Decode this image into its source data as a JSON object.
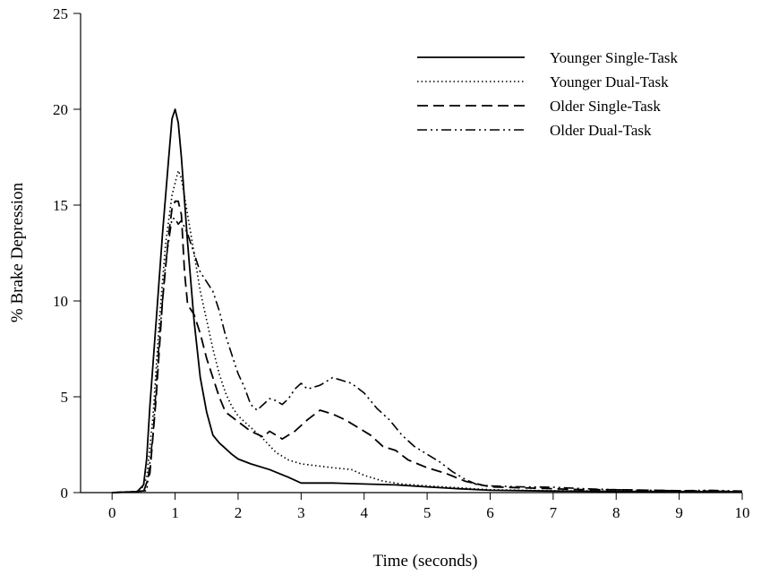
{
  "chart_data": {
    "type": "line",
    "title": "",
    "xlabel": "Time (seconds)",
    "ylabel": "% Brake Depression",
    "xlim": [
      -0.5,
      10
    ],
    "ylim": [
      0,
      25
    ],
    "xticks": [
      0,
      1,
      2,
      3,
      4,
      5,
      6,
      7,
      8,
      9,
      10
    ],
    "yticks": [
      0,
      5,
      10,
      15,
      20,
      25
    ],
    "grid": false,
    "legend_position": "top-right",
    "series": [
      {
        "name": "Younger Single-Task",
        "style": "solid",
        "color": "#000000",
        "points": [
          [
            0,
            0
          ],
          [
            0.4,
            0.05
          ],
          [
            0.5,
            0.4
          ],
          [
            0.55,
            1.8
          ],
          [
            0.6,
            4.5
          ],
          [
            0.7,
            9
          ],
          [
            0.8,
            13.5
          ],
          [
            0.9,
            17.5
          ],
          [
            0.95,
            19.5
          ],
          [
            1.0,
            20
          ],
          [
            1.05,
            19.3
          ],
          [
            1.1,
            17.5
          ],
          [
            1.2,
            13
          ],
          [
            1.3,
            9
          ],
          [
            1.4,
            6
          ],
          [
            1.5,
            4.2
          ],
          [
            1.6,
            3.0
          ],
          [
            1.7,
            2.6
          ],
          [
            1.8,
            2.3
          ],
          [
            1.9,
            2.0
          ],
          [
            2.0,
            1.75
          ],
          [
            2.2,
            1.5
          ],
          [
            2.5,
            1.2
          ],
          [
            2.8,
            0.8
          ],
          [
            3.0,
            0.5
          ],
          [
            3.5,
            0.5
          ],
          [
            4.0,
            0.45
          ],
          [
            4.5,
            0.4
          ],
          [
            5.0,
            0.3
          ],
          [
            5.5,
            0.2
          ],
          [
            6.0,
            0.12
          ],
          [
            7.0,
            0.08
          ],
          [
            8.0,
            0.06
          ],
          [
            9.0,
            0.05
          ],
          [
            10.0,
            0.05
          ]
        ]
      },
      {
        "name": "Younger Dual-Task",
        "style": "dotted",
        "color": "#000000",
        "points": [
          [
            0,
            0
          ],
          [
            0.45,
            0.05
          ],
          [
            0.55,
            0.8
          ],
          [
            0.65,
            4
          ],
          [
            0.75,
            9
          ],
          [
            0.85,
            13
          ],
          [
            0.95,
            15.5
          ],
          [
            1.05,
            16.8
          ],
          [
            1.1,
            16.4
          ],
          [
            1.2,
            14.5
          ],
          [
            1.3,
            12.5
          ],
          [
            1.4,
            10.5
          ],
          [
            1.5,
            9
          ],
          [
            1.6,
            7.5
          ],
          [
            1.7,
            6.2
          ],
          [
            1.8,
            5.2
          ],
          [
            1.9,
            4.5
          ],
          [
            2.0,
            4.0
          ],
          [
            2.2,
            3.4
          ],
          [
            2.4,
            2.8
          ],
          [
            2.6,
            2.1
          ],
          [
            2.8,
            1.7
          ],
          [
            3.0,
            1.5
          ],
          [
            3.5,
            1.3
          ],
          [
            3.8,
            1.2
          ],
          [
            4.0,
            0.9
          ],
          [
            4.3,
            0.6
          ],
          [
            4.6,
            0.45
          ],
          [
            5.0,
            0.35
          ],
          [
            5.5,
            0.25
          ],
          [
            6.0,
            0.15
          ],
          [
            7.0,
            0.1
          ],
          [
            8.0,
            0.08
          ],
          [
            9.0,
            0.07
          ],
          [
            10.0,
            0.05
          ]
        ]
      },
      {
        "name": "Older Single-Task",
        "style": "dashed",
        "color": "#000000",
        "points": [
          [
            0,
            0
          ],
          [
            0.5,
            0.05
          ],
          [
            0.6,
            1
          ],
          [
            0.7,
            5
          ],
          [
            0.8,
            10
          ],
          [
            0.9,
            13.5
          ],
          [
            0.95,
            14.8
          ],
          [
            1.0,
            15.2
          ],
          [
            1.05,
            15.2
          ],
          [
            1.1,
            14.5
          ],
          [
            1.15,
            11.5
          ],
          [
            1.2,
            9.8
          ],
          [
            1.3,
            9.3
          ],
          [
            1.4,
            8.3
          ],
          [
            1.5,
            7
          ],
          [
            1.6,
            6
          ],
          [
            1.7,
            5
          ],
          [
            1.8,
            4.2
          ],
          [
            2.0,
            3.7
          ],
          [
            2.2,
            3.2
          ],
          [
            2.4,
            2.9
          ],
          [
            2.5,
            3.2
          ],
          [
            2.7,
            2.8
          ],
          [
            2.9,
            3.2
          ],
          [
            3.1,
            3.8
          ],
          [
            3.3,
            4.3
          ],
          [
            3.5,
            4.1
          ],
          [
            3.7,
            3.8
          ],
          [
            3.9,
            3.4
          ],
          [
            4.1,
            3.0
          ],
          [
            4.3,
            2.4
          ],
          [
            4.5,
            2.2
          ],
          [
            4.7,
            1.7
          ],
          [
            5.0,
            1.3
          ],
          [
            5.3,
            1.0
          ],
          [
            5.6,
            0.6
          ],
          [
            6.0,
            0.3
          ],
          [
            6.5,
            0.25
          ],
          [
            7.0,
            0.2
          ],
          [
            7.5,
            0.15
          ],
          [
            8.0,
            0.15
          ],
          [
            9.0,
            0.1
          ],
          [
            10.0,
            0.05
          ]
        ]
      },
      {
        "name": "Older Dual-Task",
        "style": "dash-dot-dot",
        "color": "#000000",
        "points": [
          [
            0,
            0
          ],
          [
            0.55,
            0.1
          ],
          [
            0.65,
            3
          ],
          [
            0.75,
            8
          ],
          [
            0.85,
            12
          ],
          [
            0.95,
            14.3
          ],
          [
            1.0,
            14.3
          ],
          [
            1.05,
            14
          ],
          [
            1.1,
            14.2
          ],
          [
            1.2,
            13.5
          ],
          [
            1.3,
            12.5
          ],
          [
            1.4,
            11.5
          ],
          [
            1.5,
            11
          ],
          [
            1.6,
            10.5
          ],
          [
            1.7,
            9.5
          ],
          [
            1.8,
            8.2
          ],
          [
            1.9,
            7.2
          ],
          [
            2.0,
            6.2
          ],
          [
            2.1,
            5.5
          ],
          [
            2.2,
            4.6
          ],
          [
            2.3,
            4.3
          ],
          [
            2.4,
            4.6
          ],
          [
            2.5,
            4.9
          ],
          [
            2.6,
            4.8
          ],
          [
            2.7,
            4.6
          ],
          [
            2.8,
            4.9
          ],
          [
            2.9,
            5.4
          ],
          [
            3.0,
            5.7
          ],
          [
            3.1,
            5.4
          ],
          [
            3.3,
            5.6
          ],
          [
            3.5,
            6.0
          ],
          [
            3.6,
            5.9
          ],
          [
            3.8,
            5.7
          ],
          [
            4.0,
            5.2
          ],
          [
            4.2,
            4.4
          ],
          [
            4.4,
            3.8
          ],
          [
            4.6,
            3.0
          ],
          [
            4.8,
            2.4
          ],
          [
            5.0,
            2.0
          ],
          [
            5.2,
            1.6
          ],
          [
            5.4,
            1.1
          ],
          [
            5.6,
            0.7
          ],
          [
            5.8,
            0.4
          ],
          [
            6.0,
            0.35
          ],
          [
            6.5,
            0.3
          ],
          [
            7.0,
            0.28
          ],
          [
            7.5,
            0.2
          ],
          [
            8.0,
            0.15
          ],
          [
            8.5,
            0.12
          ],
          [
            9.0,
            0.1
          ],
          [
            9.5,
            0.12
          ],
          [
            10.0,
            0.08
          ]
        ]
      }
    ]
  }
}
